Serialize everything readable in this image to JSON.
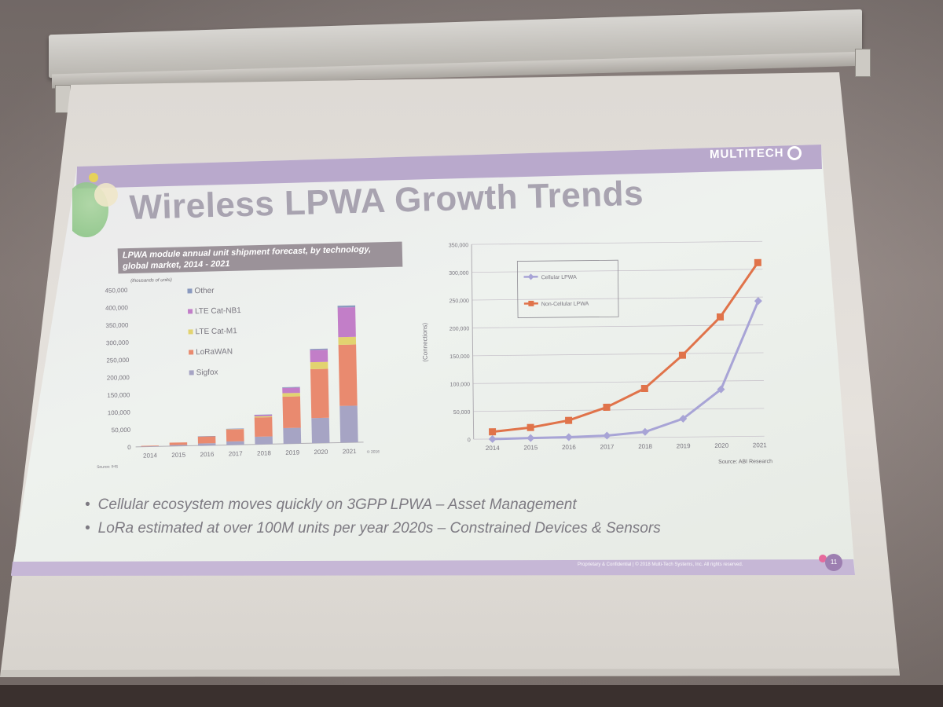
{
  "slide": {
    "brand": "MULTITECH",
    "title": "Wireless LPWA Growth Trends",
    "bullets": [
      "Cellular ecosystem moves quickly on 3GPP LPWA – Asset Management",
      "LoRa estimated at over 100M units per year 2020s – Constrained Devices & Sensors"
    ],
    "footer": "Proprietary & Confidential  |  © 2018 Multi-Tech Systems, Inc. All rights reserved.",
    "page_number": "11"
  },
  "chart_data": [
    {
      "type": "bar",
      "title": "LPWA module annual unit shipment forecast, by technology, global market, 2014 - 2021",
      "ylabel": "(thousands of units)",
      "categories": [
        "2014",
        "2015",
        "2016",
        "2017",
        "2018",
        "2019",
        "2020",
        "2021"
      ],
      "ylim": [
        0,
        450000
      ],
      "y_ticks": [
        "0",
        "50,000",
        "100,000",
        "150,000",
        "200,000",
        "250,000",
        "300,000",
        "350,000",
        "400,000",
        "450,000"
      ],
      "stacked": true,
      "series": [
        {
          "name": "Sigfox",
          "color": "#a6a4c4",
          "values": [
            1000,
            3000,
            6000,
            10000,
            22000,
            45000,
            72000,
            105000
          ]
        },
        {
          "name": "LoRaWAN",
          "color": "#e98a6f",
          "values": [
            1500,
            7000,
            20000,
            34000,
            55000,
            90000,
            140000,
            175000
          ]
        },
        {
          "name": "LTE Cat-M1",
          "color": "#e2d370",
          "values": [
            0,
            0,
            0,
            1000,
            3000,
            10000,
            20000,
            22000
          ]
        },
        {
          "name": "LTE Cat-NB1",
          "color": "#c27ec8",
          "values": [
            0,
            0,
            0,
            1000,
            4000,
            15000,
            35000,
            85000
          ]
        },
        {
          "name": "Other",
          "color": "#8a9abf",
          "values": [
            0,
            0,
            500,
            500,
            1000,
            2000,
            3000,
            5000
          ]
        }
      ],
      "source": "Source: IHS",
      "copyright": "© 2016 IHS",
      "legend_position": "top-left"
    },
    {
      "type": "line",
      "ylabel": "(Connections)",
      "x": [
        "2014",
        "2015",
        "2016",
        "2017",
        "2018",
        "2019",
        "2020",
        "2021"
      ],
      "ylim": [
        0,
        350000
      ],
      "y_ticks": [
        "0",
        "50,000",
        "100,000",
        "150,000",
        "200,000",
        "250,000",
        "300,000",
        "350,000"
      ],
      "series": [
        {
          "name": "Cellular LPWA",
          "color": "#a8a4d6",
          "values": [
            0,
            1000,
            2000,
            4000,
            10000,
            33000,
            85000,
            243000
          ]
        },
        {
          "name": "Non-Cellular LPWA",
          "color": "#e0734a",
          "values": [
            13000,
            20000,
            32000,
            55000,
            88000,
            147000,
            215000,
            312000
          ]
        }
      ],
      "source": "Source: ABI Research",
      "legend_position": "top-left",
      "grid": true
    }
  ]
}
